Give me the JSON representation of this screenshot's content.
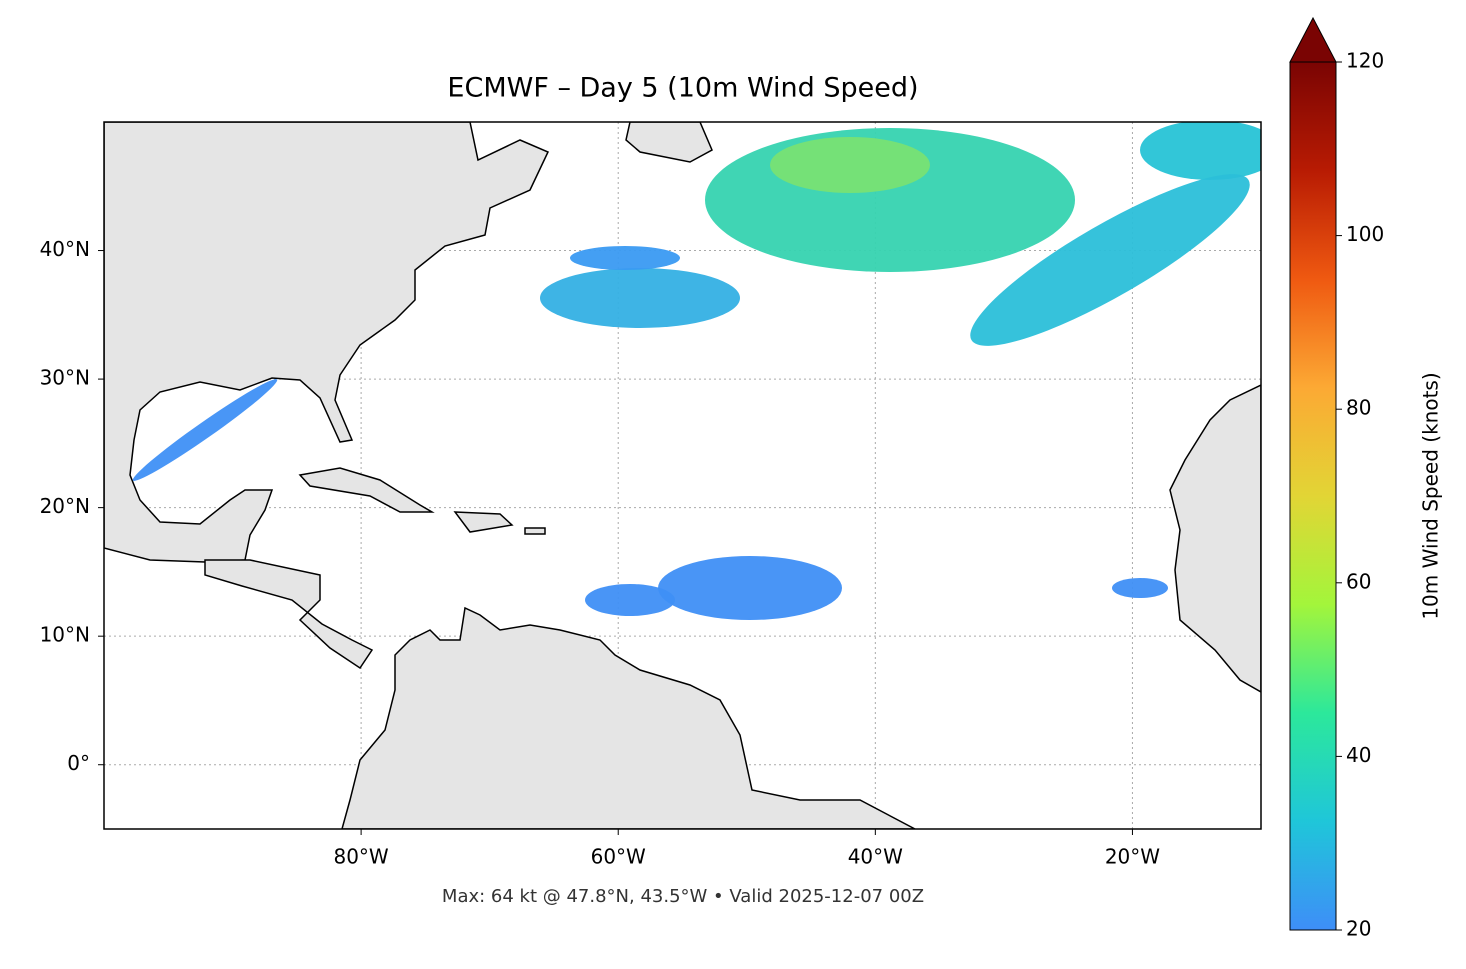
{
  "chart_data": {
    "type": "map",
    "title": "ECMWF – Day 5 (10m Wind Speed)",
    "footnote": "Max: 64 kt @ 47.8°N, 43.5°W • Valid 2025-12-07 00Z",
    "xlim": [
      -100,
      -10
    ],
    "ylim": [
      -5,
      50
    ],
    "xticks": [
      {
        "value": -80,
        "label": "80°W"
      },
      {
        "value": -60,
        "label": "60°W"
      },
      {
        "value": -40,
        "label": "40°W"
      },
      {
        "value": -20,
        "label": "20°W"
      }
    ],
    "yticks": [
      {
        "value": 0,
        "label": "0°"
      },
      {
        "value": 10,
        "label": "10°N"
      },
      {
        "value": 20,
        "label": "20°N"
      },
      {
        "value": 30,
        "label": "30°N"
      },
      {
        "value": 40,
        "label": "40°N"
      }
    ],
    "grid": true,
    "colorbar": {
      "label": "10m Wind Speed (knots)",
      "lim": [
        20,
        120
      ],
      "ticks": [
        20,
        40,
        60,
        80,
        100,
        120
      ],
      "extend": "max",
      "colors": [
        "#3e8ef8",
        "#1fc6d9",
        "#2ce89b",
        "#a3f53b",
        "#e2d535",
        "#fca934",
        "#ef5911",
        "#b81b03",
        "#7a0403"
      ]
    }
  }
}
